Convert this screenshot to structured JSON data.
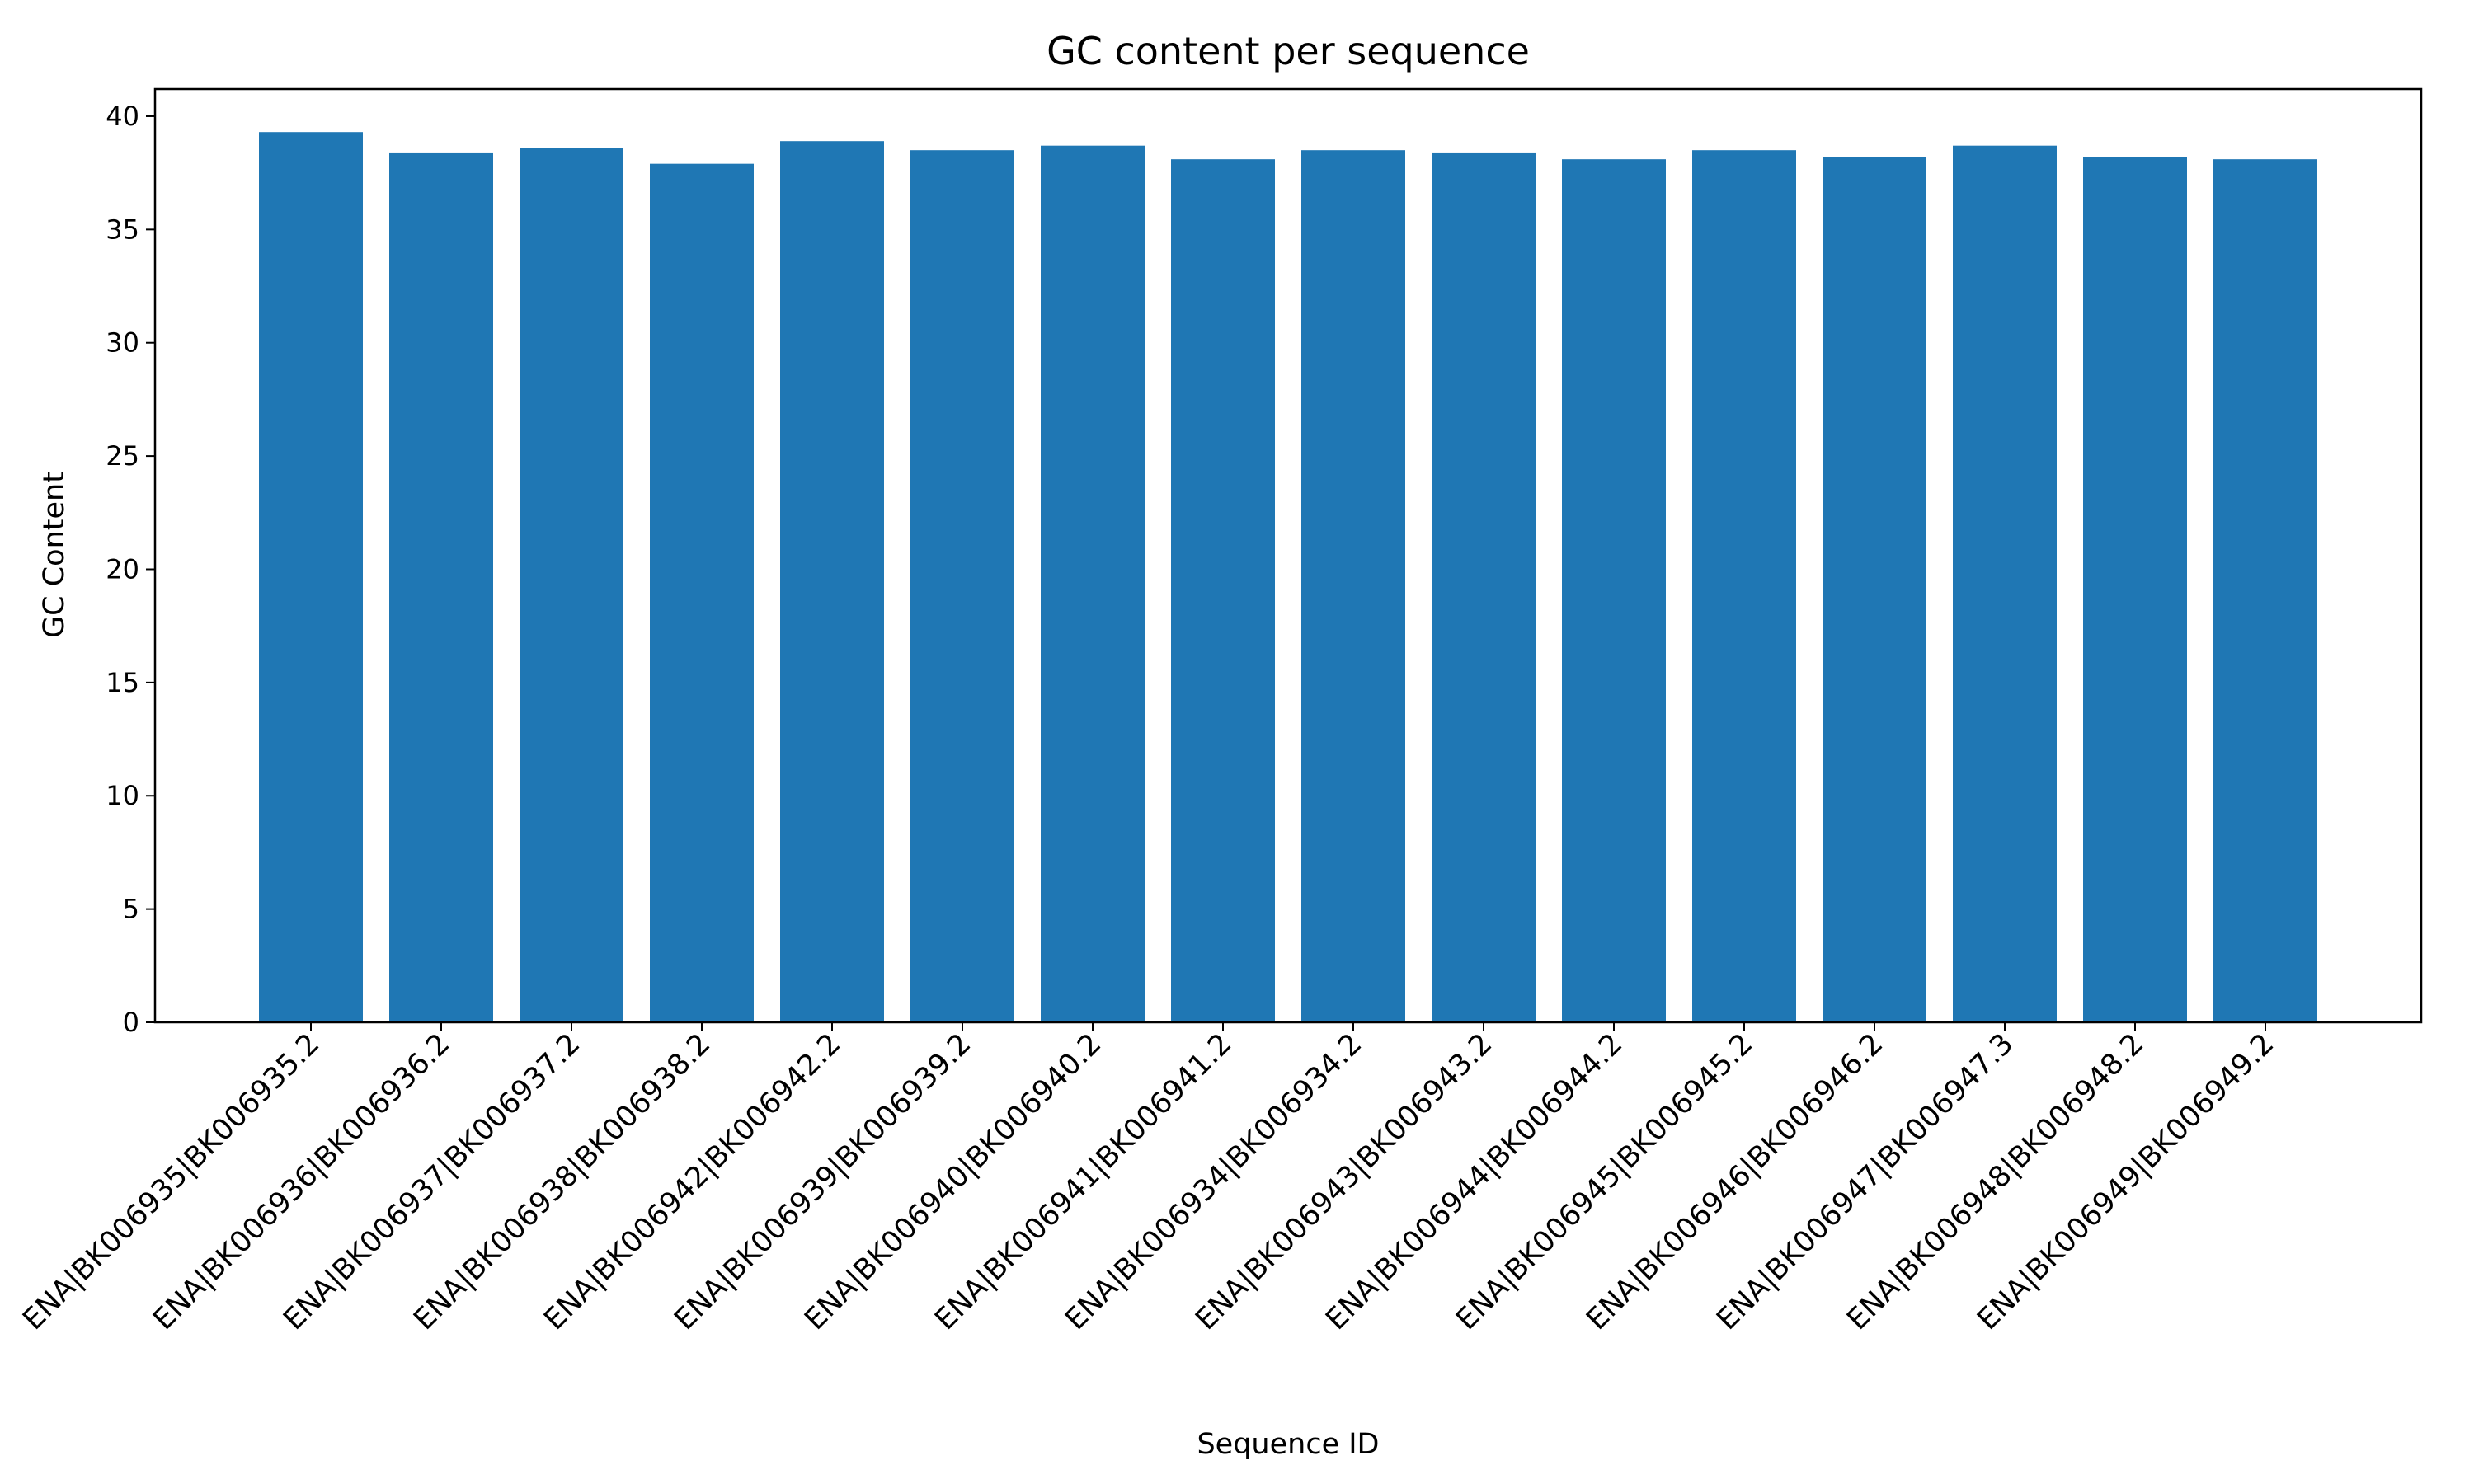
{
  "chart_data": {
    "type": "bar",
    "title": "GC content per sequence",
    "xlabel": "Sequence ID",
    "ylabel": "GC Content",
    "ylim": [
      0,
      41.2
    ],
    "yticks": [
      0,
      5,
      10,
      15,
      20,
      25,
      30,
      35,
      40
    ],
    "grid": false,
    "legend": "none",
    "bar_color": "#1f77b4",
    "categories": [
      "ENA|BK006935|BK006935.2",
      "ENA|BK006936|BK006936.2",
      "ENA|BK006937|BK006937.2",
      "ENA|BK006938|BK006938.2",
      "ENA|BK006942|BK006942.2",
      "ENA|BK006939|BK006939.2",
      "ENA|BK006940|BK006940.2",
      "ENA|BK006941|BK006941.2",
      "ENA|BK006934|BK006934.2",
      "ENA|BK006943|BK006943.2",
      "ENA|BK006944|BK006944.2",
      "ENA|BK006945|BK006945.2",
      "ENA|BK006946|BK006946.2",
      "ENA|BK006947|BK006947.3",
      "ENA|BK006948|BK006948.2",
      "ENA|BK006949|BK006949.2"
    ],
    "values": [
      39.3,
      38.4,
      38.6,
      37.9,
      38.9,
      38.5,
      38.7,
      38.1,
      38.5,
      38.4,
      38.1,
      38.5,
      38.2,
      38.7,
      38.2,
      38.1
    ]
  }
}
